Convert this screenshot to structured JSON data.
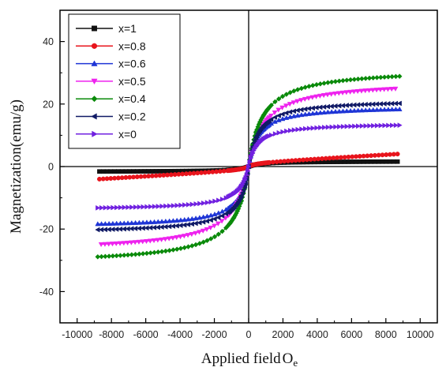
{
  "chart_data": {
    "type": "line",
    "title": "",
    "xlabel": "Applied field",
    "xlabel_unit_main": "O",
    "xlabel_unit_sub": "e",
    "ylabel": "Magnetization(emu/g)",
    "xlim": [
      -11000,
      11000
    ],
    "ylim": [
      -50,
      50
    ],
    "x_ticks": [
      -10000,
      -8000,
      -6000,
      -4000,
      -2000,
      0,
      2000,
      4000,
      6000,
      8000,
      10000
    ],
    "y_ticks": [
      -40,
      -20,
      0,
      20,
      40
    ],
    "grid": false,
    "legend_position": "top-left",
    "series": [
      {
        "name": "x=1",
        "color": "#111111",
        "marker": "square",
        "ms": 1.7,
        "knee": 700
      },
      {
        "name": "x=0.8",
        "color": "#e8141c",
        "marker": "circle",
        "ms": 1.3,
        "knee": 500,
        "slope": 0.00032
      },
      {
        "name": "x=0.6",
        "color": "#1e35d6",
        "marker": "triangle-up",
        "ms": 19.5,
        "knee": 550
      },
      {
        "name": "x=0.5",
        "color": "#ee22ee",
        "marker": "triangle-down",
        "ms": 27.5,
        "knee": 900
      },
      {
        "name": "x=0.4",
        "color": "#0a8a0a",
        "marker": "diamond",
        "ms": 31.5,
        "knee": 800
      },
      {
        "name": "x=0.2",
        "color": "#101a66",
        "marker": "triangle-left",
        "ms": 21.5,
        "knee": 560
      },
      {
        "name": "x=0",
        "color": "#7020e0",
        "marker": "triangle-right",
        "ms": 14.0,
        "knee": 520
      }
    ],
    "endpoints": {
      "x=1": [
        [
          -8700,
          -1.5
        ],
        [
          8700,
          1.6
        ]
      ],
      "x=0.8": [
        [
          -8700,
          -4.2
        ],
        [
          8700,
          4.3
        ]
      ],
      "x=0.6": [
        [
          -8800,
          -24.5
        ],
        [
          8800,
          24.8
        ]
      ],
      "x=0.5": [
        [
          -8600,
          -35.0
        ],
        [
          8600,
          34.7
        ]
      ],
      "x=0.4": [
        [
          -8800,
          -39.2
        ],
        [
          8800,
          39.7
        ]
      ],
      "x=0.2": [
        [
          -8800,
          -26.3
        ],
        [
          8800,
          26.9
        ]
      ],
      "x=0": [
        [
          -8800,
          -17.5
        ],
        [
          8800,
          18.0
        ]
      ]
    }
  }
}
